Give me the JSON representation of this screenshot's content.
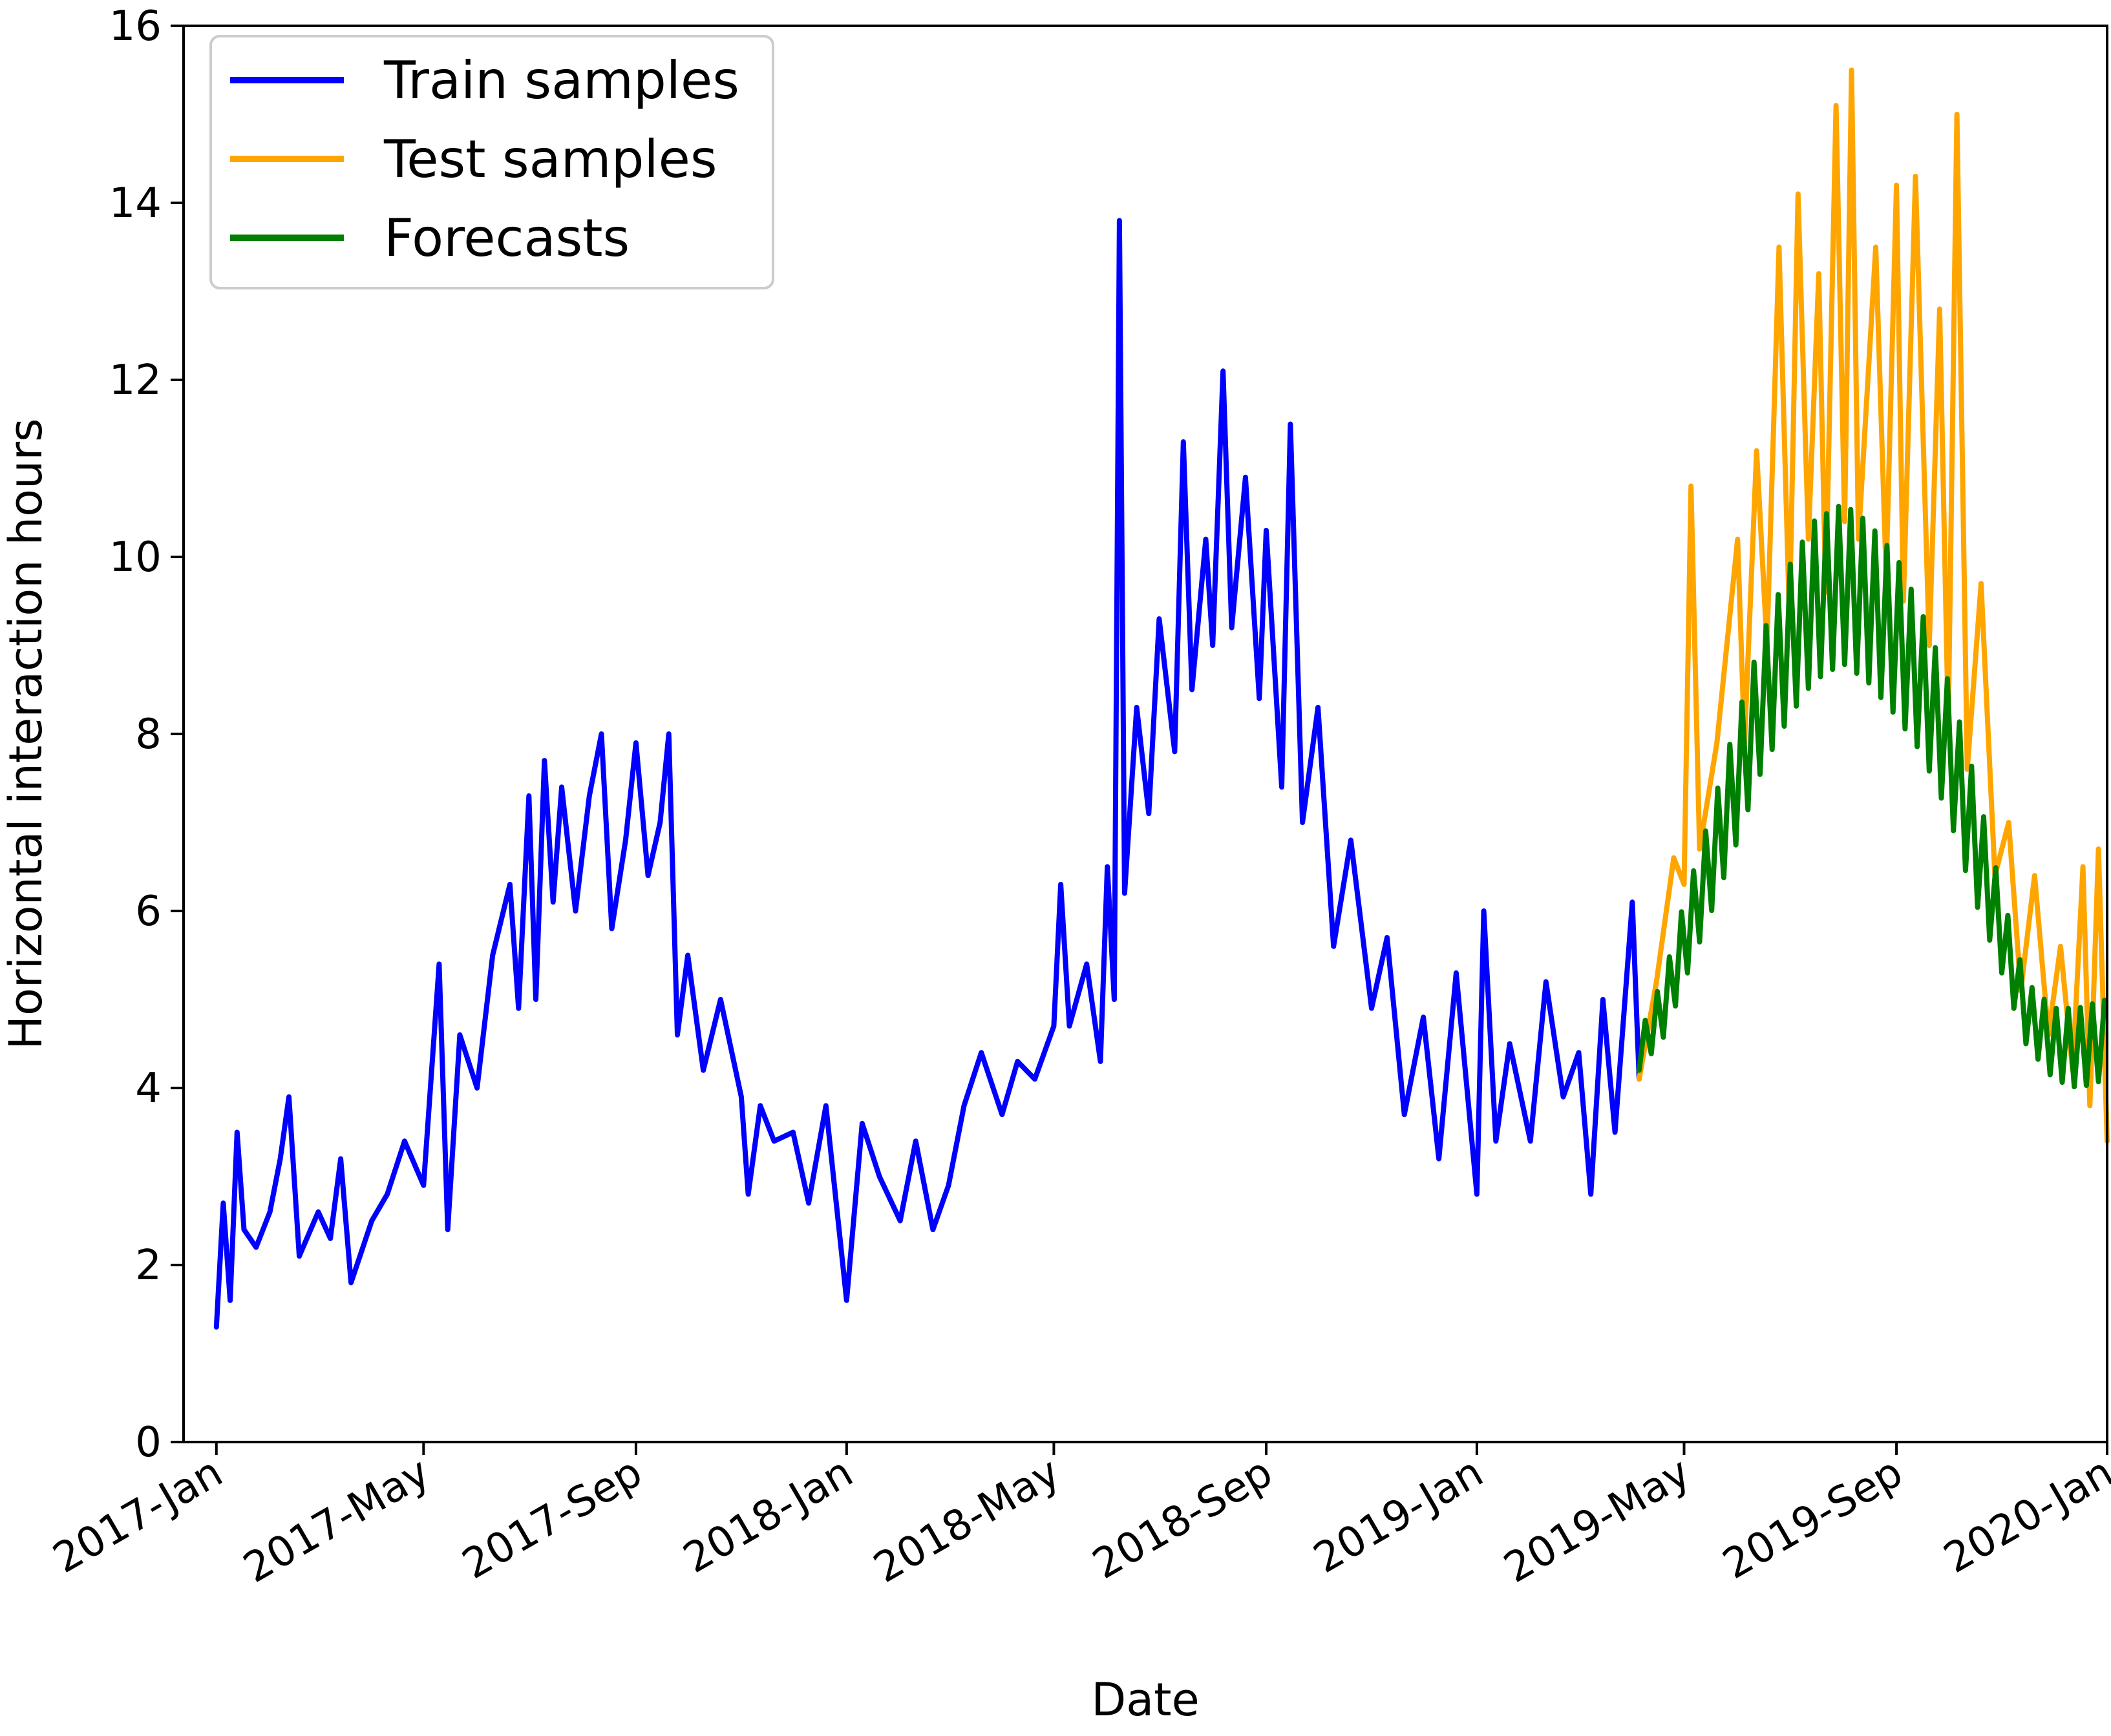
{
  "chart_data": {
    "type": "line",
    "title": "",
    "xlabel": "Date",
    "ylabel": "Horizontal interaction hours",
    "xlim": [
      "2016-12-13",
      "2020-01-01"
    ],
    "ylim": [
      0,
      16
    ],
    "grid": false,
    "legend_position": "top-left",
    "x_ticks": [
      {
        "date": "2017-01-01",
        "label": "2017-Jan"
      },
      {
        "date": "2017-05-01",
        "label": "2017-May"
      },
      {
        "date": "2017-09-01",
        "label": "2017-Sep"
      },
      {
        "date": "2018-01-01",
        "label": "2018-Jan"
      },
      {
        "date": "2018-05-01",
        "label": "2018-May"
      },
      {
        "date": "2018-09-01",
        "label": "2018-Sep"
      },
      {
        "date": "2019-01-01",
        "label": "2019-Jan"
      },
      {
        "date": "2019-05-01",
        "label": "2019-May"
      },
      {
        "date": "2019-09-01",
        "label": "2019-Sep"
      },
      {
        "date": "2020-01-01",
        "label": "2020-Jan"
      }
    ],
    "y_ticks": [
      0,
      2,
      4,
      6,
      8,
      10,
      12,
      14,
      16
    ],
    "y_tick_labels": [
      "0",
      "2",
      "4",
      "6",
      "8",
      "10",
      "12",
      "14",
      "16"
    ],
    "series": [
      {
        "name": "Train samples",
        "color": "#0000ff",
        "points": [
          [
            "2017-01-01",
            1.3
          ],
          [
            "2017-01-05",
            2.7
          ],
          [
            "2017-01-09",
            1.6
          ],
          [
            "2017-01-13",
            3.5
          ],
          [
            "2017-01-17",
            2.4
          ],
          [
            "2017-01-24",
            2.2
          ],
          [
            "2017-02-01",
            2.6
          ],
          [
            "2017-02-07",
            3.2
          ],
          [
            "2017-02-12",
            3.9
          ],
          [
            "2017-02-18",
            2.1
          ],
          [
            "2017-03-01",
            2.6
          ],
          [
            "2017-03-08",
            2.3
          ],
          [
            "2017-03-14",
            3.2
          ],
          [
            "2017-03-20",
            1.8
          ],
          [
            "2017-04-01",
            2.5
          ],
          [
            "2017-04-10",
            2.8
          ],
          [
            "2017-04-20",
            3.4
          ],
          [
            "2017-05-01",
            2.9
          ],
          [
            "2017-05-10",
            5.4
          ],
          [
            "2017-05-15",
            2.4
          ],
          [
            "2017-05-22",
            4.6
          ],
          [
            "2017-06-01",
            4.0
          ],
          [
            "2017-06-10",
            5.5
          ],
          [
            "2017-06-20",
            6.3
          ],
          [
            "2017-06-25",
            4.9
          ],
          [
            "2017-07-01",
            7.3
          ],
          [
            "2017-07-05",
            5.0
          ],
          [
            "2017-07-10",
            7.7
          ],
          [
            "2017-07-15",
            6.1
          ],
          [
            "2017-07-20",
            7.4
          ],
          [
            "2017-07-28",
            6.0
          ],
          [
            "2017-08-05",
            7.3
          ],
          [
            "2017-08-12",
            8.0
          ],
          [
            "2017-08-18",
            5.8
          ],
          [
            "2017-08-26",
            6.8
          ],
          [
            "2017-09-01",
            7.9
          ],
          [
            "2017-09-08",
            6.4
          ],
          [
            "2017-09-15",
            7.0
          ],
          [
            "2017-09-20",
            8.0
          ],
          [
            "2017-09-25",
            4.6
          ],
          [
            "2017-10-01",
            5.5
          ],
          [
            "2017-10-10",
            4.2
          ],
          [
            "2017-10-20",
            5.0
          ],
          [
            "2017-11-01",
            3.9
          ],
          [
            "2017-11-05",
            2.8
          ],
          [
            "2017-11-12",
            3.8
          ],
          [
            "2017-11-20",
            3.4
          ],
          [
            "2017-12-01",
            3.5
          ],
          [
            "2017-12-10",
            2.7
          ],
          [
            "2017-12-20",
            3.8
          ],
          [
            "2018-01-01",
            1.6
          ],
          [
            "2018-01-10",
            3.6
          ],
          [
            "2018-01-20",
            3.0
          ],
          [
            "2018-02-01",
            2.5
          ],
          [
            "2018-02-10",
            3.4
          ],
          [
            "2018-02-20",
            2.4
          ],
          [
            "2018-03-01",
            2.9
          ],
          [
            "2018-03-10",
            3.8
          ],
          [
            "2018-03-20",
            4.4
          ],
          [
            "2018-04-01",
            3.7
          ],
          [
            "2018-04-10",
            4.3
          ],
          [
            "2018-04-20",
            4.1
          ],
          [
            "2018-05-01",
            4.7
          ],
          [
            "2018-05-05",
            6.3
          ],
          [
            "2018-05-10",
            4.7
          ],
          [
            "2018-05-20",
            5.4
          ],
          [
            "2018-05-28",
            4.3
          ],
          [
            "2018-06-01",
            6.5
          ],
          [
            "2018-06-05",
            5.0
          ],
          [
            "2018-06-08",
            13.8
          ],
          [
            "2018-06-11",
            6.2
          ],
          [
            "2018-06-18",
            8.3
          ],
          [
            "2018-06-25",
            7.1
          ],
          [
            "2018-07-01",
            9.3
          ],
          [
            "2018-07-10",
            7.8
          ],
          [
            "2018-07-15",
            11.3
          ],
          [
            "2018-07-20",
            8.5
          ],
          [
            "2018-07-28",
            10.2
          ],
          [
            "2018-08-01",
            9.0
          ],
          [
            "2018-08-07",
            12.1
          ],
          [
            "2018-08-12",
            9.2
          ],
          [
            "2018-08-20",
            10.9
          ],
          [
            "2018-08-28",
            8.4
          ],
          [
            "2018-09-01",
            10.3
          ],
          [
            "2018-09-10",
            7.4
          ],
          [
            "2018-09-15",
            11.5
          ],
          [
            "2018-09-22",
            7.0
          ],
          [
            "2018-10-01",
            8.3
          ],
          [
            "2018-10-10",
            5.6
          ],
          [
            "2018-10-20",
            6.8
          ],
          [
            "2018-11-01",
            4.9
          ],
          [
            "2018-11-10",
            5.7
          ],
          [
            "2018-11-20",
            3.7
          ],
          [
            "2018-12-01",
            4.8
          ],
          [
            "2018-12-10",
            3.2
          ],
          [
            "2018-12-20",
            5.3
          ],
          [
            "2019-01-01",
            2.8
          ],
          [
            "2019-01-05",
            6.0
          ],
          [
            "2019-01-12",
            3.4
          ],
          [
            "2019-01-20",
            4.5
          ],
          [
            "2019-02-01",
            3.4
          ],
          [
            "2019-02-10",
            5.2
          ],
          [
            "2019-02-20",
            3.9
          ],
          [
            "2019-03-01",
            4.4
          ],
          [
            "2019-03-08",
            2.8
          ],
          [
            "2019-03-15",
            5.0
          ],
          [
            "2019-03-22",
            3.5
          ],
          [
            "2019-04-01",
            6.1
          ],
          [
            "2019-04-05",
            4.1
          ]
        ]
      },
      {
        "name": "Test samples",
        "color": "#ffa500",
        "points": [
          [
            "2019-04-05",
            4.1
          ],
          [
            "2019-04-15",
            5.2
          ],
          [
            "2019-04-25",
            6.6
          ],
          [
            "2019-05-01",
            6.3
          ],
          [
            "2019-05-05",
            10.8
          ],
          [
            "2019-05-10",
            6.7
          ],
          [
            "2019-05-20",
            7.9
          ],
          [
            "2019-06-01",
            10.2
          ],
          [
            "2019-06-05",
            7.9
          ],
          [
            "2019-06-12",
            11.2
          ],
          [
            "2019-06-18",
            9.0
          ],
          [
            "2019-06-25",
            13.5
          ],
          [
            "2019-07-01",
            9.3
          ],
          [
            "2019-07-06",
            14.1
          ],
          [
            "2019-07-12",
            10.2
          ],
          [
            "2019-07-18",
            13.2
          ],
          [
            "2019-07-22",
            9.6
          ],
          [
            "2019-07-28",
            15.1
          ],
          [
            "2019-08-02",
            10.4
          ],
          [
            "2019-08-06",
            15.5
          ],
          [
            "2019-08-10",
            10.2
          ],
          [
            "2019-08-20",
            13.5
          ],
          [
            "2019-08-26",
            9.8
          ],
          [
            "2019-09-01",
            14.2
          ],
          [
            "2019-09-05",
            9.5
          ],
          [
            "2019-09-12",
            14.3
          ],
          [
            "2019-09-20",
            9.0
          ],
          [
            "2019-09-26",
            12.8
          ],
          [
            "2019-10-01",
            8.1
          ],
          [
            "2019-10-06",
            15.0
          ],
          [
            "2019-10-12",
            7.6
          ],
          [
            "2019-10-20",
            9.7
          ],
          [
            "2019-10-28",
            6.4
          ],
          [
            "2019-11-05",
            7.0
          ],
          [
            "2019-11-12",
            5.1
          ],
          [
            "2019-11-20",
            6.4
          ],
          [
            "2019-11-28",
            4.6
          ],
          [
            "2019-12-05",
            5.6
          ],
          [
            "2019-12-12",
            4.2
          ],
          [
            "2019-12-18",
            6.5
          ],
          [
            "2019-12-22",
            3.8
          ],
          [
            "2019-12-27",
            6.7
          ],
          [
            "2020-01-01",
            3.4
          ]
        ]
      },
      {
        "name": "Forecasts",
        "color": "#008000",
        "points": [
          [
            "2019-04-05",
            4.2
          ],
          [
            "2019-04-20",
            4.6
          ],
          [
            "2019-05-01",
            5.2
          ],
          [
            "2019-05-15",
            5.9
          ],
          [
            "2019-06-01",
            6.8
          ],
          [
            "2019-06-15",
            7.6
          ],
          [
            "2019-07-01",
            8.2
          ],
          [
            "2019-07-15",
            8.6
          ],
          [
            "2019-08-01",
            8.8
          ],
          [
            "2019-08-15",
            8.6
          ],
          [
            "2019-09-01",
            8.2
          ],
          [
            "2019-09-15",
            7.8
          ],
          [
            "2019-10-01",
            7.1
          ],
          [
            "2019-10-15",
            6.2
          ],
          [
            "2019-11-01",
            5.3
          ],
          [
            "2019-11-15",
            4.5
          ],
          [
            "2019-12-01",
            4.1
          ],
          [
            "2019-12-15",
            4.0
          ],
          [
            "2020-01-01",
            4.1
          ]
        ],
        "upper_points": [
          [
            "2019-04-05",
            4.6
          ],
          [
            "2019-04-20",
            5.3
          ],
          [
            "2019-05-01",
            6.1
          ],
          [
            "2019-05-15",
            7.0
          ],
          [
            "2019-06-01",
            8.2
          ],
          [
            "2019-06-15",
            9.1
          ],
          [
            "2019-07-01",
            9.9
          ],
          [
            "2019-07-15",
            10.4
          ],
          [
            "2019-08-01",
            10.6
          ],
          [
            "2019-08-15",
            10.4
          ],
          [
            "2019-09-01",
            10.0
          ],
          [
            "2019-09-15",
            9.4
          ],
          [
            "2019-10-01",
            8.6
          ],
          [
            "2019-10-15",
            7.6
          ],
          [
            "2019-11-01",
            6.2
          ],
          [
            "2019-11-15",
            5.2
          ],
          [
            "2019-12-01",
            4.9
          ],
          [
            "2019-12-15",
            4.9
          ],
          [
            "2020-01-01",
            5.0
          ]
        ]
      }
    ]
  }
}
